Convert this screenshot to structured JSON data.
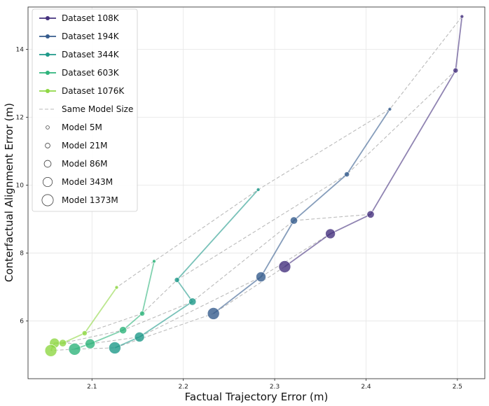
{
  "chart_data": {
    "type": "scatter",
    "title": "",
    "xlabel": "Factual Trajectory Error (m)",
    "ylabel": "Conterfactual Alignment Error (m)",
    "xlim": [
      2.03,
      2.53
    ],
    "ylim": [
      4.3,
      15.25
    ],
    "xticks": [
      2.1,
      2.2,
      2.3,
      2.4,
      2.5
    ],
    "xtick_labels": [
      "2.1",
      "2.2",
      "2.3",
      "2.4",
      "2.5"
    ],
    "yticks": [
      6,
      8,
      10,
      12,
      14
    ],
    "ytick_labels": [
      "6",
      "8",
      "10",
      "12",
      "14"
    ],
    "grid": true,
    "legend_position": "top-left",
    "model_sizes": [
      "5M",
      "21M",
      "86M",
      "343M",
      "1373M"
    ],
    "series": [
      {
        "name": "Dataset 108K",
        "color": "#46327e",
        "x": [
          2.505,
          2.498,
          2.405,
          2.361,
          2.311
        ],
        "y": [
          14.97,
          13.38,
          9.14,
          8.57,
          7.6
        ]
      },
      {
        "name": "Dataset 194K",
        "color": "#365c8d",
        "x": [
          2.426,
          2.379,
          2.321,
          2.285,
          2.233
        ],
        "y": [
          12.24,
          10.32,
          8.96,
          7.3,
          6.22
        ]
      },
      {
        "name": "Dataset 344K",
        "color": "#1f9a8a",
        "x": [
          2.282,
          2.193,
          2.21,
          2.152,
          2.125
        ],
        "y": [
          9.87,
          7.21,
          6.57,
          5.53,
          5.21
        ]
      },
      {
        "name": "Dataset 603K",
        "color": "#2fb47c",
        "x": [
          2.168,
          2.155,
          2.134,
          2.098,
          2.081
        ],
        "y": [
          7.76,
          6.22,
          5.73,
          5.33,
          5.17
        ]
      },
      {
        "name": "Dataset 1076K",
        "color": "#8fd744",
        "x": [
          2.127,
          2.092,
          2.068,
          2.059,
          2.055
        ],
        "y": [
          6.99,
          5.64,
          5.35,
          5.35,
          5.13
        ]
      }
    ],
    "size_series": [
      {
        "name": "Same Model Size",
        "color": "#bbbbbb",
        "points_by_model": "5M,21M,86M,343M,1373M"
      }
    ]
  },
  "legend": {
    "items": [
      {
        "label": "Dataset 108K",
        "kind": "series",
        "color": "#46327e"
      },
      {
        "label": "Dataset 194K",
        "kind": "series",
        "color": "#365c8d"
      },
      {
        "label": "Dataset 344K",
        "kind": "series",
        "color": "#1f9a8a"
      },
      {
        "label": "Dataset 603K",
        "kind": "series",
        "color": "#2fb47c"
      },
      {
        "label": "Dataset 1076K",
        "kind": "series",
        "color": "#8fd744"
      },
      {
        "label": "Same Model Size",
        "kind": "dashed",
        "color": "#bbbbbb"
      },
      {
        "label": "Model 5M",
        "kind": "size",
        "size_index": 0
      },
      {
        "label": "Model 21M",
        "kind": "size",
        "size_index": 1
      },
      {
        "label": "Model 86M",
        "kind": "size",
        "size_index": 2
      },
      {
        "label": "Model 343M",
        "kind": "size",
        "size_index": 3
      },
      {
        "label": "Model 1373M",
        "kind": "size",
        "size_index": 4
      }
    ]
  }
}
